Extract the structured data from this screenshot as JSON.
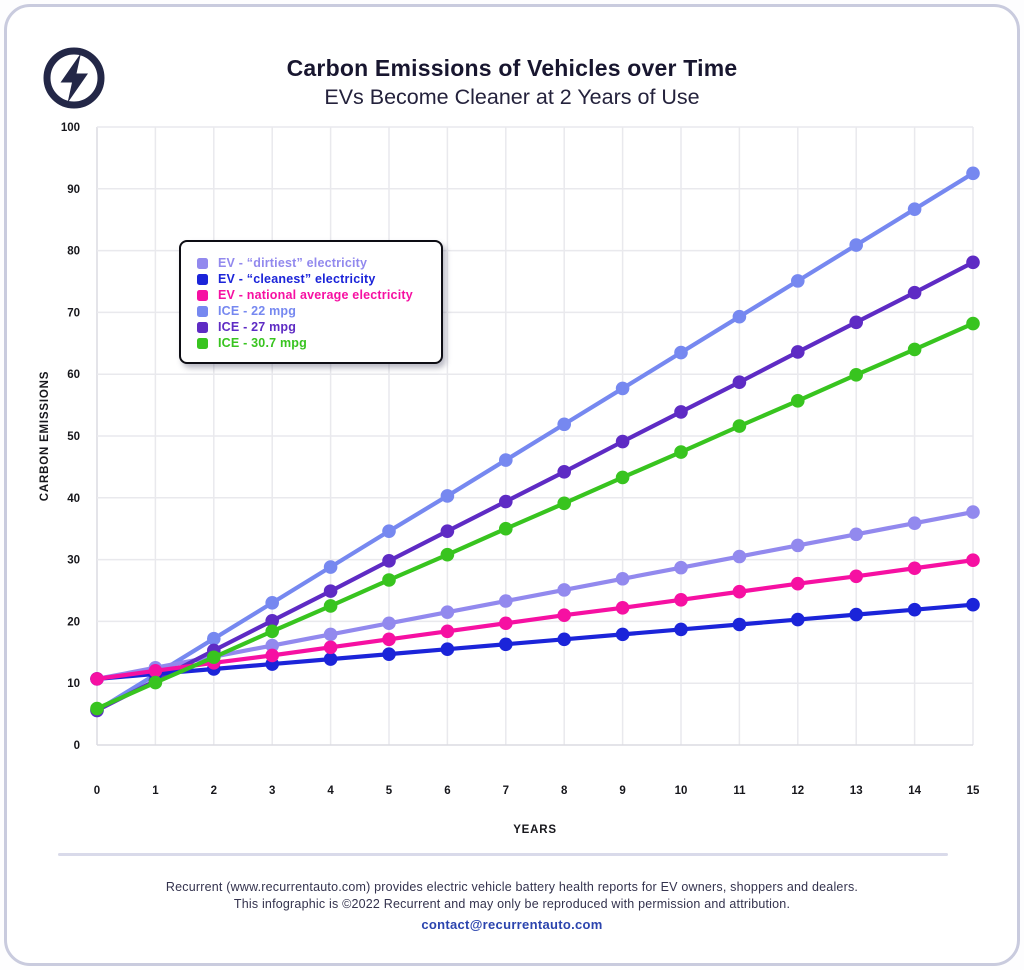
{
  "header": {
    "title": "Carbon Emissions of Vehicles over Time",
    "subtitle": "EVs Become Cleaner at 2 Years of Use"
  },
  "logo": {
    "icon": "lightning-bolt-in-circle",
    "color": "#232747"
  },
  "chart_data": {
    "type": "line",
    "title": "Carbon Emissions of Vehicles over Time",
    "subtitle": "EVs Become Cleaner at 2 Years of Use",
    "x": [
      0,
      1,
      2,
      3,
      4,
      5,
      6,
      7,
      8,
      9,
      10,
      11,
      12,
      13,
      14,
      15
    ],
    "xlabel": "YEARS",
    "ylabel": "CARBON EMISSIONS",
    "ylim": [
      0,
      100
    ],
    "ytick_step": 10,
    "grid": true,
    "legend_position": "upper-left-inside",
    "marker": "circle",
    "series": [
      {
        "name": "EV - “dirtiest” electricity",
        "color": "#9289ee",
        "values": [
          10.7,
          12.5,
          14.3,
          16.1,
          17.9,
          19.7,
          21.5,
          23.3,
          25.1,
          26.9,
          28.7,
          30.5,
          32.3,
          34.1,
          35.9,
          37.7
        ]
      },
      {
        "name": "EV - “cleanest” electricity",
        "color": "#1b24d9",
        "values": [
          10.7,
          11.5,
          12.3,
          13.1,
          13.9,
          14.7,
          15.5,
          16.3,
          17.1,
          17.9,
          18.7,
          19.5,
          20.3,
          21.1,
          21.9,
          22.7
        ]
      },
      {
        "name": "EV - national average electricity",
        "color": "#f610a2",
        "values": [
          10.7,
          12.0,
          13.3,
          14.5,
          15.8,
          17.1,
          18.4,
          19.7,
          21.0,
          22.2,
          23.5,
          24.8,
          26.1,
          27.3,
          28.6,
          29.9
        ]
      },
      {
        "name": "ICE - 22 mpg",
        "color": "#7688f0",
        "values": [
          5.6,
          11.4,
          17.2,
          23.0,
          28.8,
          34.6,
          40.3,
          46.1,
          51.9,
          57.7,
          63.5,
          69.3,
          75.1,
          80.9,
          86.7,
          92.5
        ]
      },
      {
        "name": "ICE - 27 mpg",
        "color": "#5e2bc4",
        "values": [
          5.6,
          10.4,
          15.3,
          20.1,
          24.9,
          29.8,
          34.6,
          39.4,
          44.2,
          49.1,
          53.9,
          58.7,
          63.6,
          68.4,
          73.2,
          78.1
        ]
      },
      {
        "name": "ICE - 30.7 mpg",
        "color": "#38c41f",
        "values": [
          5.9,
          10.1,
          14.2,
          18.4,
          22.5,
          26.7,
          30.8,
          35.0,
          39.1,
          43.3,
          47.4,
          51.6,
          55.7,
          59.9,
          64.0,
          68.2
        ]
      }
    ]
  },
  "footer": {
    "line1": "Recurrent (www.recurrentauto.com) provides electric vehicle battery health reports for EV owners, shoppers and dealers.",
    "line2": "This infographic is ©2022 Recurrent and may only be reproduced with permission and attribution.",
    "email": "contact@recurrentauto.com"
  }
}
